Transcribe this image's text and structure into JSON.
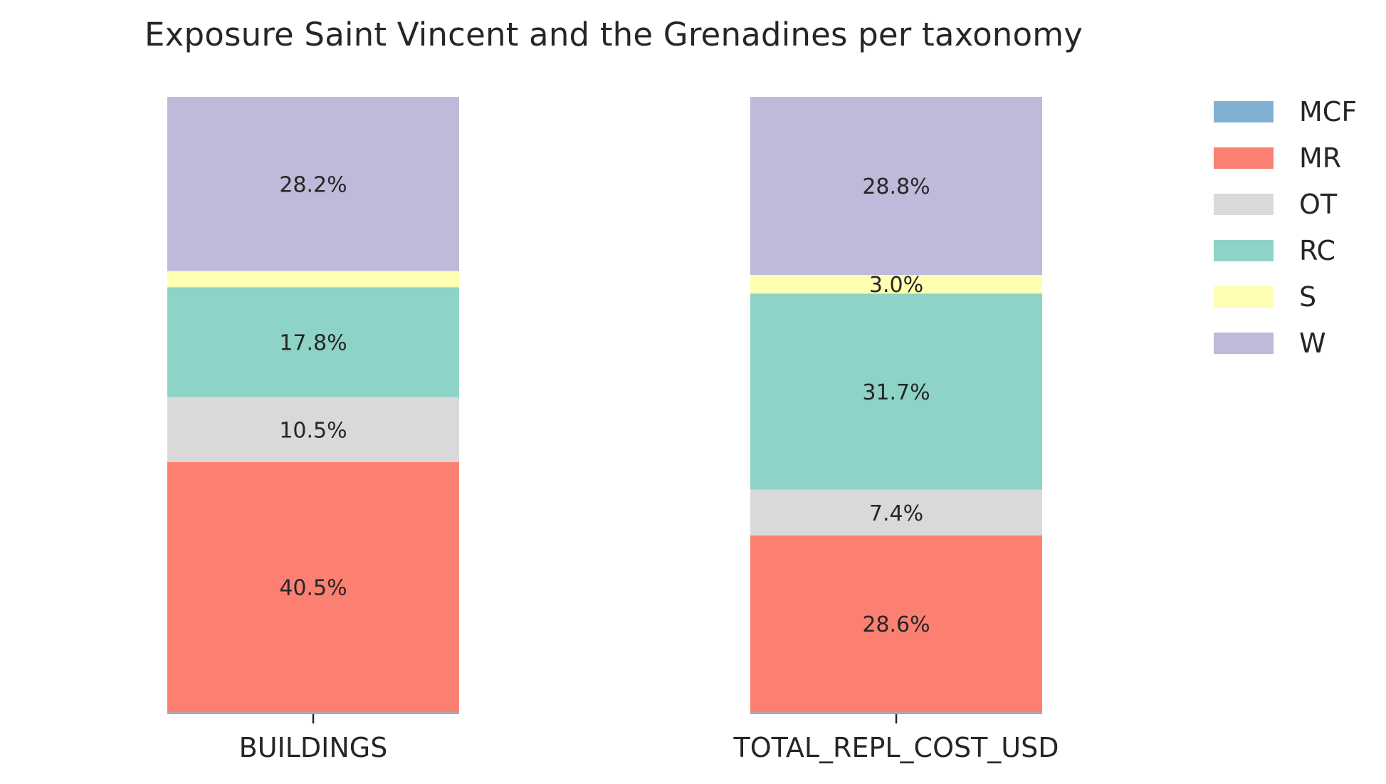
{
  "chart_data": {
    "type": "bar",
    "stacked": true,
    "title": "Exposure Saint Vincent and the Grenadines per taxonomy",
    "categories": [
      "BUILDINGS",
      "TOTAL_REPL_COST_USD"
    ],
    "series": [
      {
        "name": "MCF",
        "color": "#80b1d3",
        "values": [
          0.3,
          0.3
        ],
        "labels": [
          "",
          ""
        ]
      },
      {
        "name": "MR",
        "color": "#fb8072",
        "values": [
          40.5,
          28.6
        ],
        "labels": [
          "40.5%",
          "28.6%"
        ]
      },
      {
        "name": "OT",
        "color": "#d9d9d9",
        "values": [
          10.5,
          7.4
        ],
        "labels": [
          "10.5%",
          "7.4%"
        ]
      },
      {
        "name": "RC",
        "color": "#8dd3c7",
        "values": [
          17.8,
          31.7
        ],
        "labels": [
          "17.8%",
          "31.7%"
        ]
      },
      {
        "name": "S",
        "color": "#ffffb3",
        "values": [
          2.6,
          3.0
        ],
        "labels": [
          "",
          "3.0%"
        ]
      },
      {
        "name": "W",
        "color": "#bebada",
        "values": [
          28.2,
          28.8
        ],
        "labels": [
          "28.2%",
          "28.8%"
        ]
      }
    ],
    "ylim": [
      0,
      100
    ],
    "xlabel": "",
    "ylabel": "",
    "grid": false,
    "legend_position": "top-right"
  }
}
